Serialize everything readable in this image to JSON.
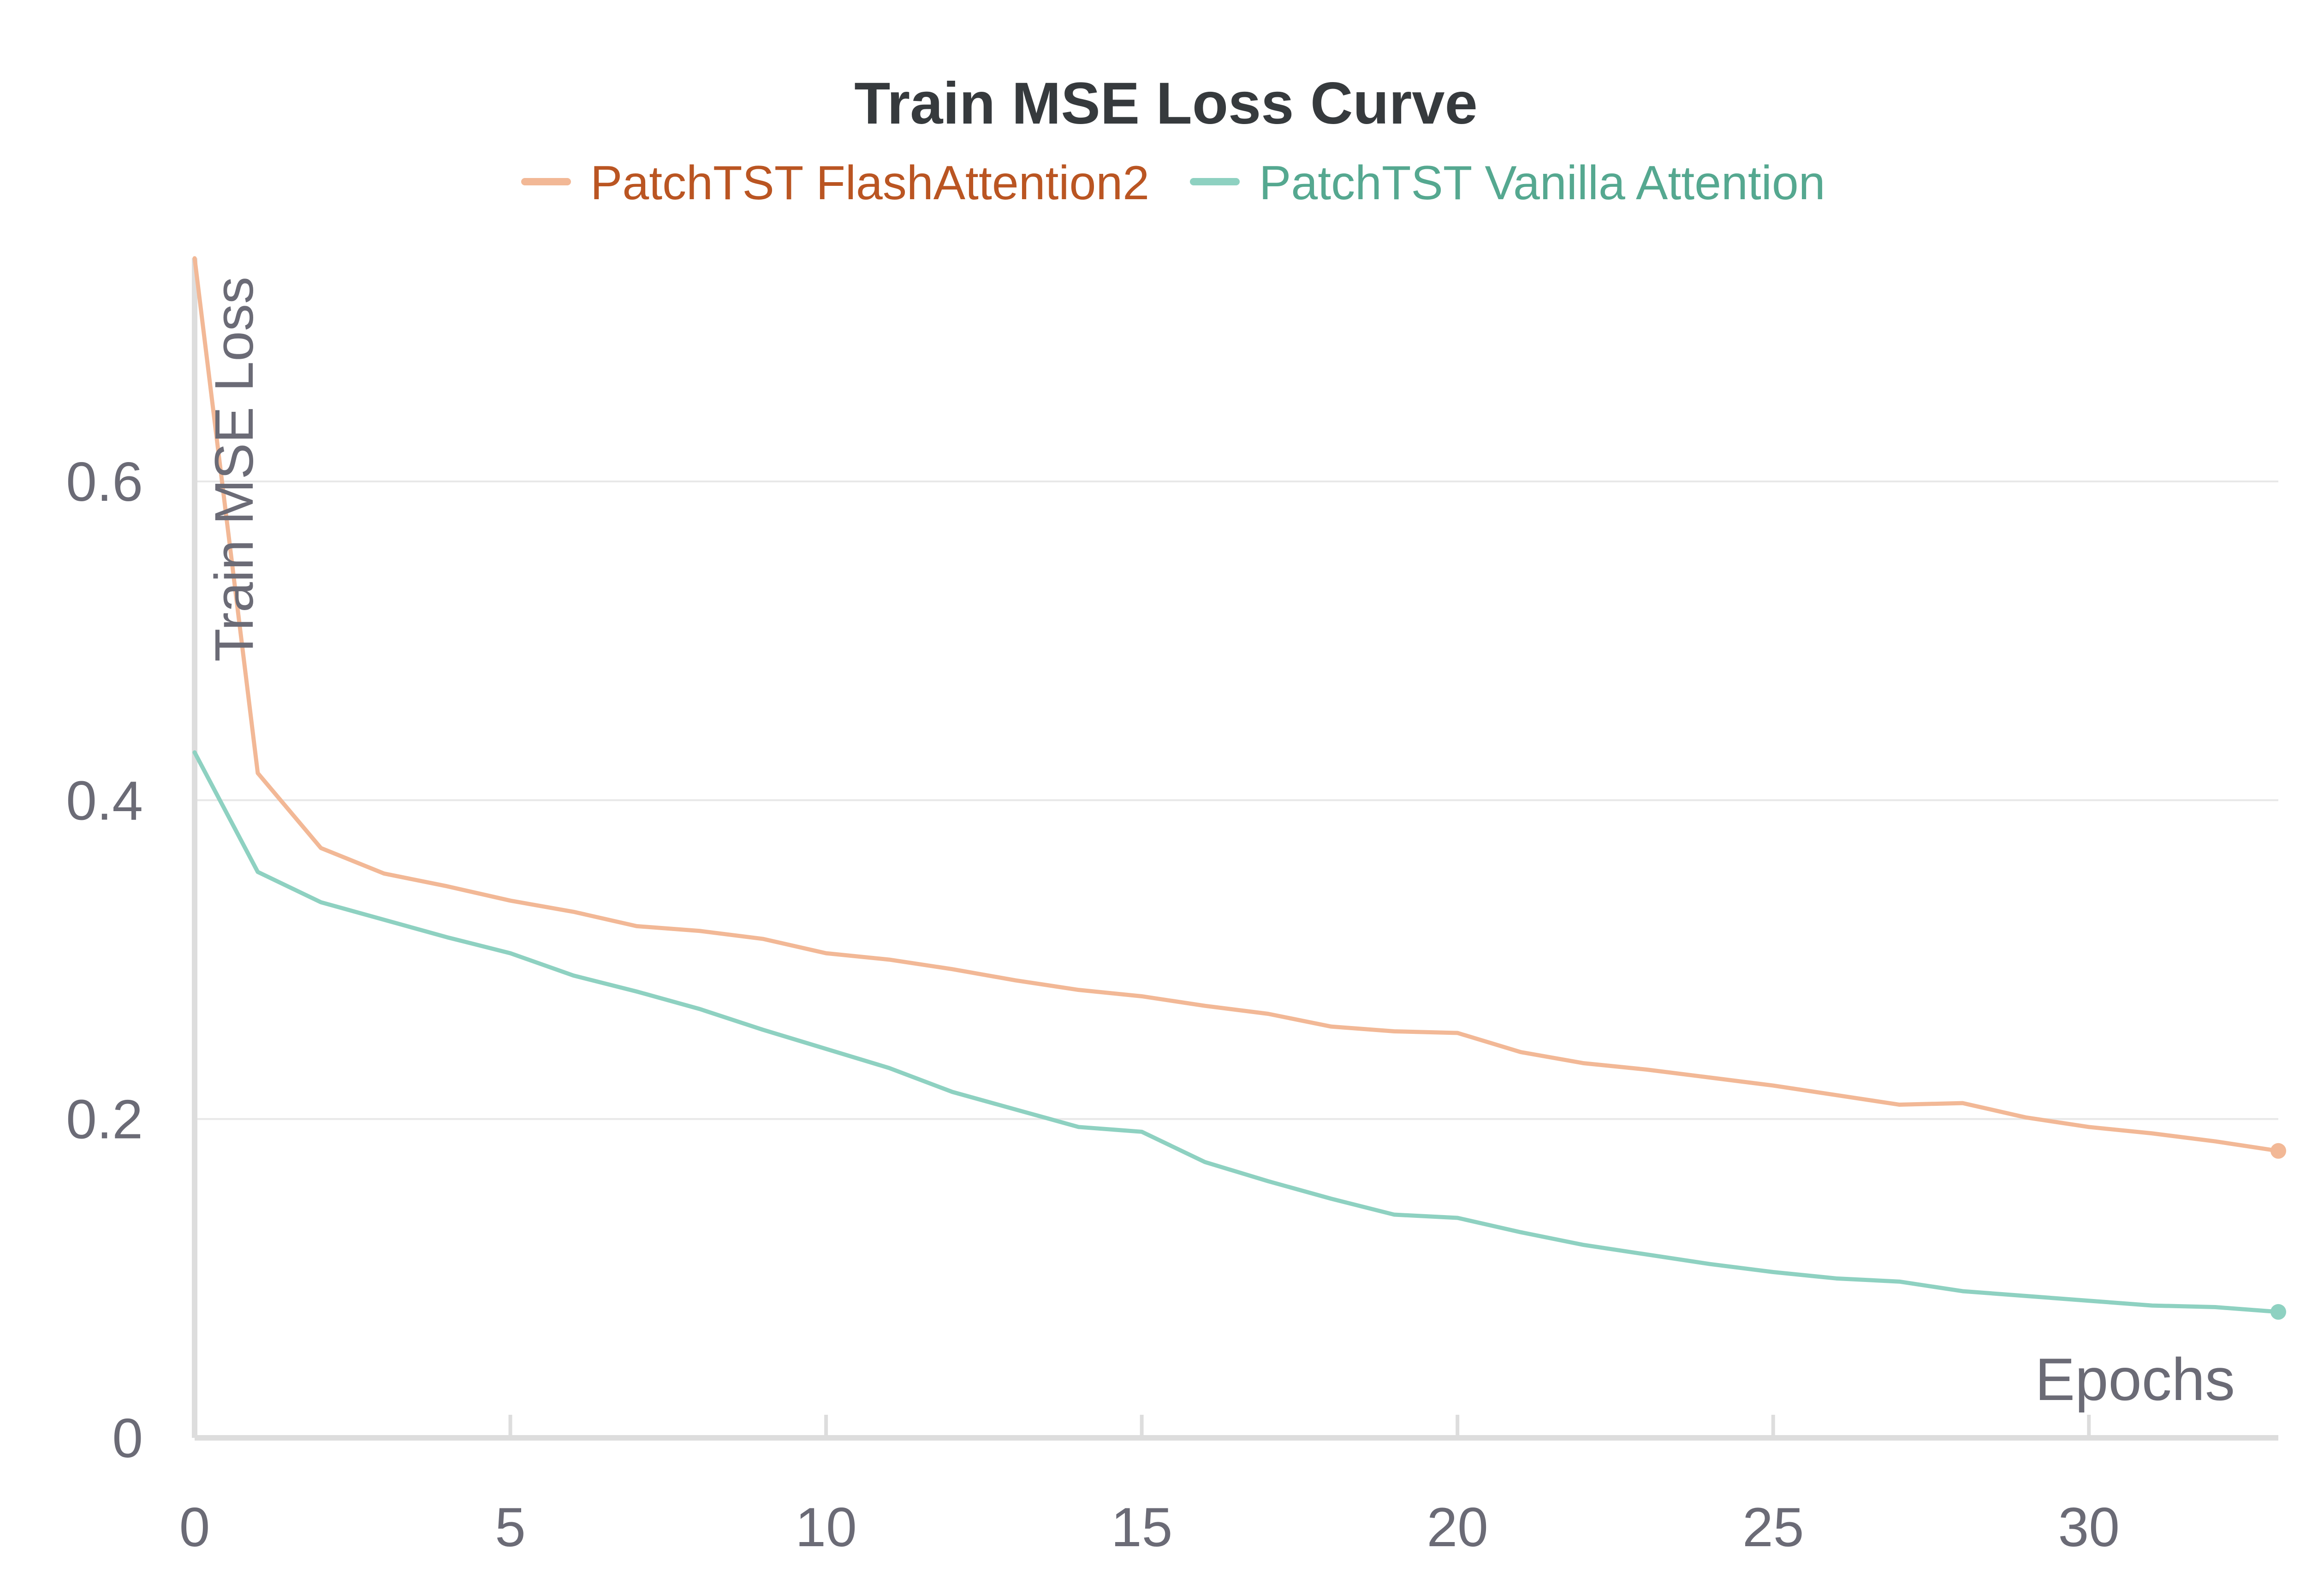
{
  "chart_data": {
    "type": "line",
    "title": "Train MSE Loss Curve",
    "xlabel": "Epochs",
    "ylabel": "Train MSE Loss",
    "xlim": [
      0,
      33
    ],
    "ylim": [
      0,
      0.74
    ],
    "xticks": [
      0,
      5,
      10,
      15,
      20,
      25,
      30
    ],
    "xtick_labels": [
      "0",
      "5",
      "10",
      "15",
      "20",
      "25",
      "30"
    ],
    "yticks": [
      0,
      0.2,
      0.4,
      0.6
    ],
    "ytick_labels": [
      "0",
      "0.2",
      "0.4",
      "0.6"
    ],
    "grid": true,
    "legend_position": "top-center",
    "x": [
      0,
      1,
      2,
      3,
      4,
      5,
      6,
      7,
      8,
      9,
      10,
      11,
      12,
      13,
      14,
      15,
      16,
      17,
      18,
      19,
      20,
      21,
      22,
      23,
      24,
      25,
      26,
      27,
      28,
      29,
      30,
      31,
      32,
      33
    ],
    "series": [
      {
        "name": "PatchTST FlashAttention2",
        "color": "#F2B896",
        "text_color": "#BA5522",
        "values": [
          0.74,
          0.417,
          0.37,
          0.354,
          0.346,
          0.337,
          0.33,
          0.321,
          0.318,
          0.313,
          0.304,
          0.3,
          0.294,
          0.287,
          0.281,
          0.277,
          0.271,
          0.266,
          0.258,
          0.255,
          0.254,
          0.242,
          0.235,
          0.231,
          0.226,
          0.221,
          0.215,
          0.209,
          0.21,
          0.201,
          0.195,
          0.191,
          0.186,
          0.18
        ]
      },
      {
        "name": "PatchTST Vanilla Attention",
        "color": "#8ED1C1",
        "text_color": "#55A890",
        "values": [
          0.43,
          0.355,
          0.336,
          0.325,
          0.314,
          0.304,
          0.29,
          0.28,
          0.269,
          0.256,
          0.244,
          0.232,
          0.217,
          0.206,
          0.195,
          0.192,
          0.173,
          0.161,
          0.15,
          0.14,
          0.138,
          0.129,
          0.121,
          0.115,
          0.109,
          0.104,
          0.1,
          0.098,
          0.092,
          0.089,
          0.086,
          0.083,
          0.082,
          0.079
        ]
      }
    ]
  },
  "colors": {
    "grid": "#E8E8E8",
    "axis": "#DDDDDD",
    "tick_text": "#6B6B76",
    "title_text": "#363A3D"
  }
}
